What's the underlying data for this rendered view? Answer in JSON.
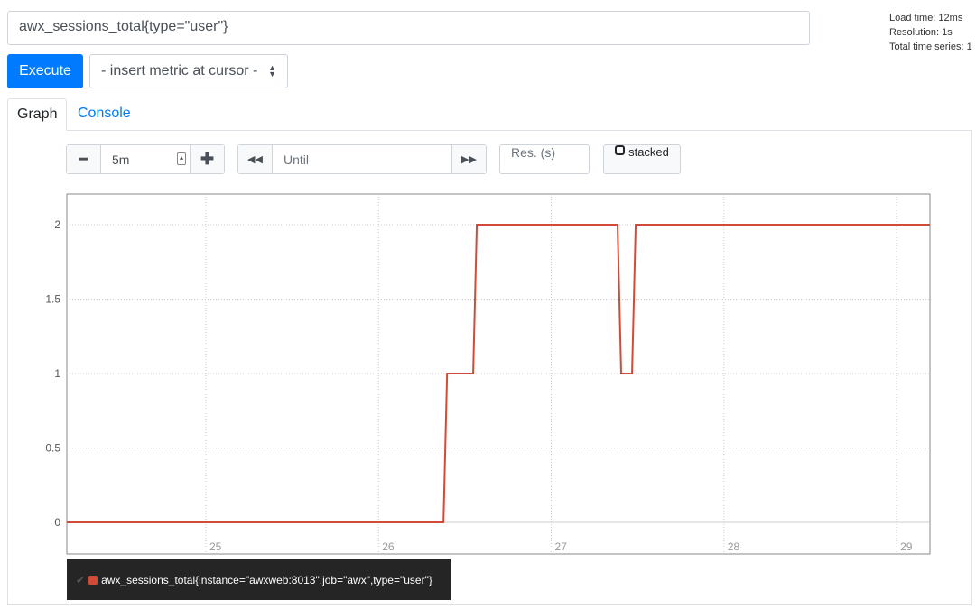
{
  "expression": "awx_sessions_total{type=\"user\"}",
  "stats": {
    "load_time": "Load time: 12ms",
    "resolution": "Resolution: 1s",
    "total_series": "Total time series: 1"
  },
  "execute_label": "Execute",
  "insert_metric": "- insert metric at cursor -",
  "tabs": [
    {
      "label": "Graph",
      "active": true
    },
    {
      "label": "Console",
      "active": false
    }
  ],
  "controls": {
    "range": "5m",
    "until_placeholder": "Until",
    "res_placeholder": "Res. (s)",
    "stacked": "stacked"
  },
  "legend": {
    "series": "awx_sessions_total{instance=\"awxweb:8013\",job=\"awx\",type=\"user\"}",
    "color": "#d24b37"
  },
  "chart_data": {
    "type": "line",
    "xlim": [
      24.195,
      29.193
    ],
    "ylim": [
      -0.212,
      2.206
    ],
    "x_ticks": [
      "25",
      "26",
      "27",
      "28",
      "29"
    ],
    "y_ticks": [
      "0",
      "0.5",
      "1",
      "1.5",
      "2"
    ],
    "grid": true,
    "series": [
      {
        "name": "awx_sessions_total{instance=\"awxweb:8013\",job=\"awx\",type=\"user\"}",
        "color": "#d24b37",
        "x": [
          24.195,
          26.376,
          26.397,
          26.548,
          26.569,
          27.384,
          27.405,
          27.468,
          27.489,
          29.193
        ],
        "y": [
          0,
          0,
          1,
          1,
          2,
          2,
          1,
          1,
          2,
          2
        ]
      }
    ]
  }
}
